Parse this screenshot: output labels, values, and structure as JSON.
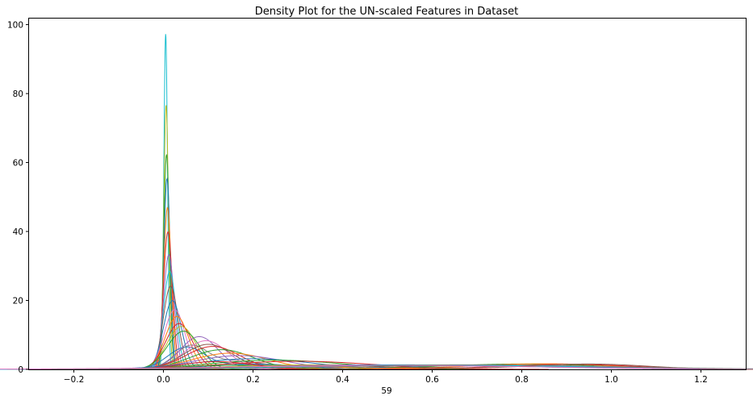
{
  "chart_data": {
    "type": "line",
    "title": "Density Plot for the UN-scaled Features in Dataset",
    "xlabel": "59",
    "ylabel": "",
    "xlim": [
      -0.3,
      1.3
    ],
    "ylim": [
      0,
      102
    ],
    "x_ticks": [
      -0.2,
      0.0,
      0.2,
      0.4,
      0.6,
      0.8,
      1.0,
      1.2
    ],
    "x_tick_labels": [
      "−0.2",
      "0.0",
      "0.2",
      "0.4",
      "0.6",
      "0.8",
      "1.0",
      "1.2"
    ],
    "y_ticks": [
      0,
      20,
      40,
      60,
      80,
      100
    ],
    "y_tick_labels": [
      "0",
      "20",
      "40",
      "60",
      "80",
      "100"
    ],
    "grid": false,
    "legend": "none",
    "colors": [
      "#1f77b4",
      "#ff7f0e",
      "#2ca02c",
      "#d62728",
      "#9467bd",
      "#8c564b",
      "#e377c2",
      "#7f7f7f",
      "#bcbd22",
      "#17becf"
    ],
    "series": [
      {
        "components": [
          {
            "w": 1.0,
            "mu": 0.005,
            "sigma": 0.0041
          }
        ],
        "color": "#17becf"
      },
      {
        "components": [
          {
            "w": 1.0,
            "mu": 0.006,
            "sigma": 0.0052
          }
        ],
        "color": "#bcbd22"
      },
      {
        "components": [
          {
            "w": 1.0,
            "mu": 0.007,
            "sigma": 0.0064
          }
        ],
        "color": "#2ca02c"
      },
      {
        "components": [
          {
            "w": 1.0,
            "mu": 0.008,
            "sigma": 0.0072
          }
        ],
        "color": "#1f77b4"
      },
      {
        "components": [
          {
            "w": 1.0,
            "mu": 0.009,
            "sigma": 0.0085
          }
        ],
        "color": "#ff7f0e"
      },
      {
        "components": [
          {
            "w": 1.0,
            "mu": 0.01,
            "sigma": 0.01
          }
        ],
        "color": "#d62728"
      },
      {
        "components": [
          {
            "w": 1.0,
            "mu": 0.012,
            "sigma": 0.012
          }
        ],
        "color": "#9467bd"
      },
      {
        "components": [
          {
            "w": 1.0,
            "mu": 0.014,
            "sigma": 0.014
          }
        ],
        "color": "#17becf"
      },
      {
        "components": [
          {
            "w": 1.0,
            "mu": 0.016,
            "sigma": 0.0165
          }
        ],
        "color": "#8c564b"
      },
      {
        "components": [
          {
            "w": 1.0,
            "mu": 0.02,
            "sigma": 0.02
          }
        ],
        "color": "#1f77b4"
      },
      {
        "components": [
          {
            "w": 1.0,
            "mu": 0.025,
            "sigma": 0.023
          }
        ],
        "color": "#e377c2"
      },
      {
        "components": [
          {
            "w": 1.0,
            "mu": 0.03,
            "sigma": 0.026
          }
        ],
        "color": "#ff7f0e"
      },
      {
        "components": [
          {
            "w": 1.0,
            "mu": 0.035,
            "sigma": 0.03
          }
        ],
        "color": "#d62728"
      },
      {
        "components": [
          {
            "w": 1.0,
            "mu": 0.04,
            "sigma": 0.032
          }
        ],
        "color": "#bcbd22"
      },
      {
        "components": [
          {
            "w": 1.0,
            "mu": 0.045,
            "sigma": 0.036
          }
        ],
        "color": "#2ca02c"
      },
      {
        "components": [
          {
            "w": 0.6,
            "mu": 0.05,
            "sigma": 0.04
          },
          {
            "w": 0.4,
            "mu": 0.2,
            "sigma": 0.1
          }
        ],
        "color": "#1f77b4"
      },
      {
        "components": [
          {
            "w": 0.5,
            "mu": 0.06,
            "sigma": 0.035
          },
          {
            "w": 0.5,
            "mu": 0.15,
            "sigma": 0.08
          }
        ],
        "color": "#7f7f7f"
      },
      {
        "components": [
          {
            "w": 1.0,
            "mu": 0.08,
            "sigma": 0.042
          }
        ],
        "color": "#9467bd"
      },
      {
        "components": [
          {
            "w": 1.0,
            "mu": 0.095,
            "sigma": 0.048
          }
        ],
        "color": "#e377c2"
      },
      {
        "components": [
          {
            "w": 1.0,
            "mu": 0.1,
            "sigma": 0.055
          }
        ],
        "color": "#8c564b"
      },
      {
        "components": [
          {
            "w": 1.0,
            "mu": 0.11,
            "sigma": 0.06
          }
        ],
        "color": "#d62728"
      },
      {
        "components": [
          {
            "w": 1.0,
            "mu": 0.13,
            "sigma": 0.07
          }
        ],
        "color": "#2ca02c"
      },
      {
        "components": [
          {
            "w": 1.0,
            "mu": 0.15,
            "sigma": 0.085
          }
        ],
        "color": "#ff7f0e"
      },
      {
        "components": [
          {
            "w": 1.0,
            "mu": 0.17,
            "sigma": 0.1
          }
        ],
        "color": "#9467bd"
      },
      {
        "components": [
          {
            "w": 1.0,
            "mu": 0.2,
            "sigma": 0.13
          }
        ],
        "color": "#1f77b4"
      },
      {
        "components": [
          {
            "w": 1.0,
            "mu": 0.25,
            "sigma": 0.15
          }
        ],
        "color": "#2ca02c"
      },
      {
        "components": [
          {
            "w": 1.0,
            "mu": 0.3,
            "sigma": 0.17
          }
        ],
        "color": "#d62728"
      },
      {
        "components": [
          {
            "w": 0.4,
            "mu": 0.2,
            "sigma": 0.12
          },
          {
            "w": 0.6,
            "mu": 0.75,
            "sigma": 0.2
          }
        ],
        "color": "#1f77b4"
      },
      {
        "components": [
          {
            "w": 0.3,
            "mu": 0.15,
            "sigma": 0.1
          },
          {
            "w": 0.7,
            "mu": 0.8,
            "sigma": 0.18
          }
        ],
        "color": "#2ca02c"
      },
      {
        "components": [
          {
            "w": 0.35,
            "mu": 0.25,
            "sigma": 0.14
          },
          {
            "w": 0.65,
            "mu": 0.85,
            "sigma": 0.16
          }
        ],
        "color": "#ff7f0e"
      },
      {
        "components": [
          {
            "w": 0.5,
            "mu": 0.3,
            "sigma": 0.18
          },
          {
            "w": 0.5,
            "mu": 0.7,
            "sigma": 0.22
          }
        ],
        "color": "#bcbd22"
      },
      {
        "components": [
          {
            "w": 1.0,
            "mu": 0.5,
            "sigma": 0.3
          }
        ],
        "color": "#9467bd"
      },
      {
        "components": [
          {
            "w": 0.45,
            "mu": 0.12,
            "sigma": 0.08
          },
          {
            "w": 0.55,
            "mu": 0.9,
            "sigma": 0.15
          }
        ],
        "color": "#d62728"
      },
      {
        "components": [
          {
            "w": 1.0,
            "mu": 0.6,
            "sigma": 0.32
          }
        ],
        "color": "#17becf"
      },
      {
        "components": [
          {
            "w": 0.5,
            "mu": 0.35,
            "sigma": 0.2
          },
          {
            "w": 0.5,
            "mu": 0.95,
            "sigma": 0.13
          }
        ],
        "color": "#8c564b"
      },
      {
        "components": [
          {
            "w": 1.0,
            "mu": 0.5,
            "sigma": 0.38
          }
        ],
        "color": "#e377c2"
      },
      {
        "components": [
          {
            "w": 1.0,
            "mu": 0.7,
            "sigma": 0.3
          }
        ],
        "color": "#7f7f7f"
      }
    ]
  }
}
